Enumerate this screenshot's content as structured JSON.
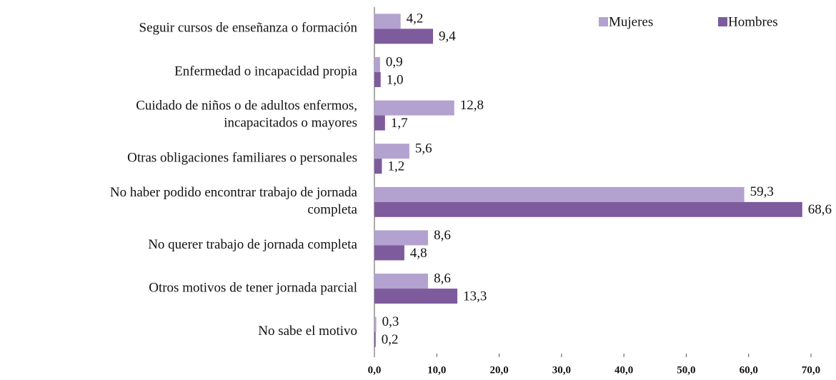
{
  "chart_data": {
    "type": "bar",
    "orientation": "horizontal",
    "categories": [
      "Seguir cursos de enseñanza o formación",
      "Enfermedad o incapacidad propia",
      "Cuidado de niños o de adultos enfermos,\nincapacitados o mayores",
      "Otras obligaciones familiares o personales",
      "No haber podido encontrar trabajo de jornada\ncompleta",
      "No querer trabajo de jornada completa",
      "Otros motivos de tener jornada parcial",
      "No sabe el motivo"
    ],
    "series": [
      {
        "name": "Mujeres",
        "color": "#b3a2cf",
        "values": [
          4.2,
          0.9,
          12.8,
          5.6,
          59.3,
          8.6,
          8.6,
          0.3
        ],
        "value_labels": [
          "4,2",
          "0,9",
          "12,8",
          "5,6",
          "59,3",
          "8,6",
          "8,6",
          "0,3"
        ]
      },
      {
        "name": "Hombres",
        "color": "#7d5b9c",
        "values": [
          9.4,
          1.0,
          1.7,
          1.2,
          68.6,
          4.8,
          13.3,
          0.2
        ],
        "value_labels": [
          "9,4",
          "1,0",
          "1,7",
          "1,2",
          "68,6",
          "4,8",
          "13,3",
          "0,2"
        ]
      }
    ],
    "xlim": [
      0,
      70
    ],
    "xticks": [
      {
        "value": 0,
        "label": "0,0"
      },
      {
        "value": 10,
        "label": "10,0"
      },
      {
        "value": 20,
        "label": "20,0"
      },
      {
        "value": 30,
        "label": "30,0"
      },
      {
        "value": 40,
        "label": "40,0"
      },
      {
        "value": 50,
        "label": "50,0"
      },
      {
        "value": 60,
        "label": "60,0"
      },
      {
        "value": 70,
        "label": "70,0"
      }
    ],
    "grid": false,
    "legend": "top-right"
  }
}
